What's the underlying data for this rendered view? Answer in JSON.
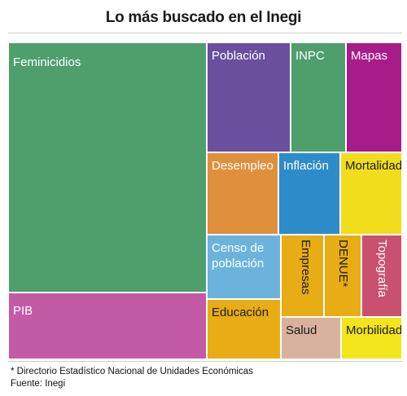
{
  "header": {
    "title": "Lo más buscado en el Inegi"
  },
  "footer": {
    "note": "* Directorio Estadístico Nacional de Unidades Económicas",
    "source": "Fuente: Inegi"
  },
  "chart_data": {
    "type": "treemap",
    "title": "Lo más buscado en el Inegi",
    "value_unit": "share of chart area (%)",
    "items": [
      {
        "label": "Feminicidios",
        "value": 40.6,
        "color": "#4e9f6b",
        "text_color": "#ffffff"
      },
      {
        "label": "PIB",
        "value": 10.7,
        "color": "#c25aa6",
        "text_color": "#ffffff"
      },
      {
        "label": "Población",
        "value": 7.2,
        "color": "#6a4f9e",
        "text_color": "#ffffff"
      },
      {
        "label": "INPC",
        "value": 4.9,
        "color": "#4e9f6b",
        "text_color": "#ffffff"
      },
      {
        "label": "Mapas",
        "value": 5.0,
        "color": "#a81c8a",
        "text_color": "#ffffff"
      },
      {
        "label": "Desempleo",
        "value": 4.3,
        "color": "#e08f3d",
        "text_color": "#ffffff"
      },
      {
        "label": "Inflación",
        "value": 3.8,
        "color": "#2e8bc9",
        "text_color": "#ffffff"
      },
      {
        "label": "Mortalidad",
        "value": 3.8,
        "color": "#f2dd1c",
        "text_color": "#1a1a1a"
      },
      {
        "label": "Censo de\npoblación",
        "value": 4.0,
        "color": "#6bb3dc",
        "text_color": "#ffffff"
      },
      {
        "label": "Educación",
        "value": 2.9,
        "color": "#e8ad14",
        "text_color": "#1a1a1a"
      },
      {
        "label": "Empresas",
        "value": 2.6,
        "color": "#e8ad14",
        "text_color": "#1a1a1a",
        "vertical": true
      },
      {
        "label": "DENUE*",
        "value": 2.4,
        "color": "#e8ad14",
        "text_color": "#1a1a1a",
        "vertical": true
      },
      {
        "label": "Topografía",
        "value": 2.4,
        "color": "#c9506e",
        "text_color": "#ffffff",
        "vertical": true
      },
      {
        "label": "Salud",
        "value": 2.0,
        "color": "#d9b29e",
        "text_color": "#1a1a1a"
      },
      {
        "label": "Morbilidad",
        "value": 2.1,
        "color": "#f2e51c",
        "text_color": "#1a1a1a"
      }
    ]
  }
}
